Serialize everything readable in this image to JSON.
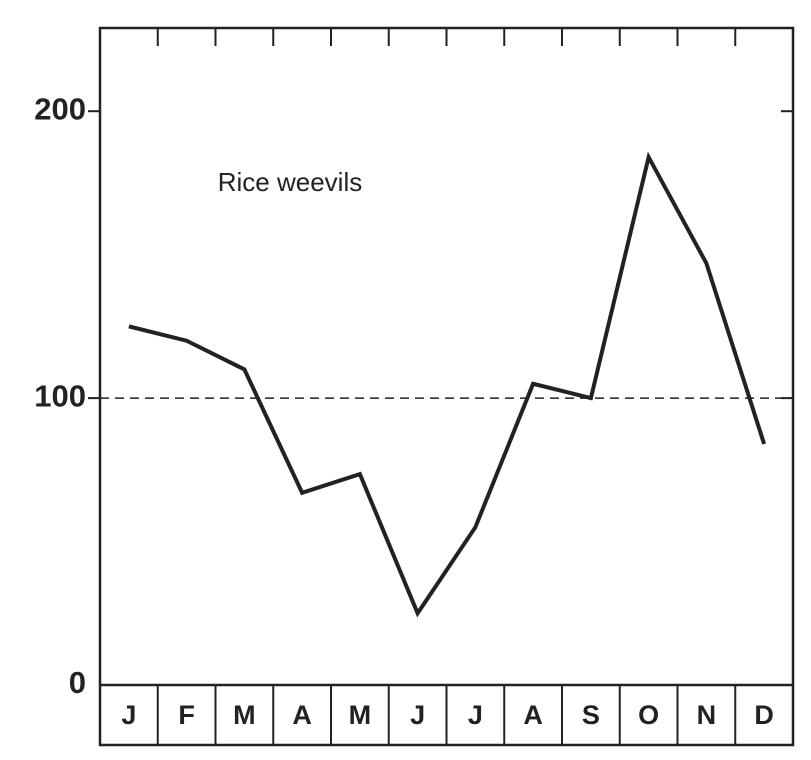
{
  "chart_data": {
    "type": "line",
    "annotation": "Rice weevils",
    "categories": [
      "J",
      "F",
      "M",
      "A",
      "M",
      "J",
      "J",
      "A",
      "S",
      "O",
      "N",
      "D"
    ],
    "values": [
      125,
      120,
      110,
      67,
      73.5,
      25,
      55,
      105,
      100,
      184,
      147,
      84
    ],
    "color": "#222222",
    "ylim": [
      0,
      229
    ],
    "yticks": [
      0,
      100,
      200
    ],
    "reference_line": 100
  }
}
